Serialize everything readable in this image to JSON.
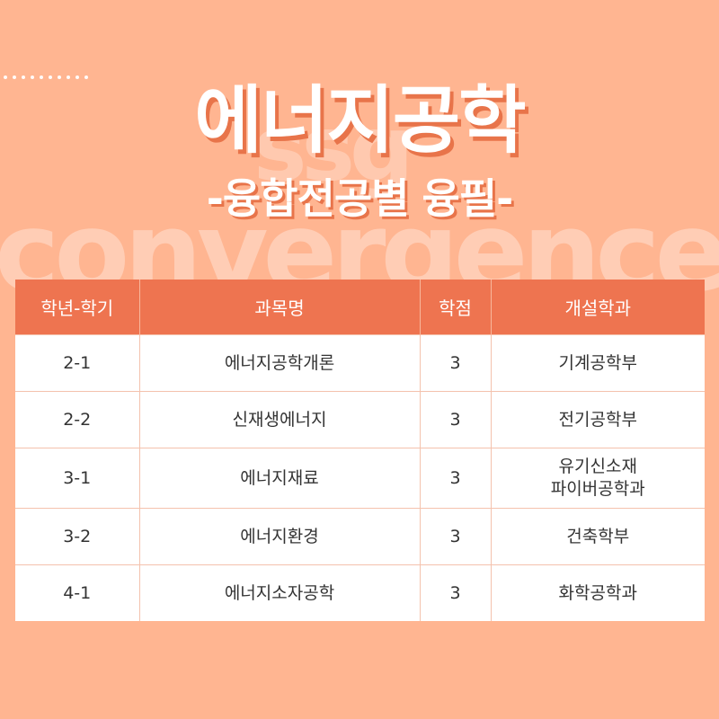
{
  "header": {
    "title": "에너지공학",
    "subtitle": "-융합전공별 융필-",
    "background_word": "convergence",
    "background_word_2": "ssg"
  },
  "table": {
    "columns": [
      "학년-학기",
      "과목명",
      "학점",
      "개설학과"
    ],
    "rows": [
      {
        "term": "2-1",
        "course": "에너지공학개론",
        "credits": "3",
        "department": "기계공학부"
      },
      {
        "term": "2-2",
        "course": "신재생에너지",
        "credits": "3",
        "department": "전기공학부"
      },
      {
        "term": "3-1",
        "course": "에너지재료",
        "credits": "3",
        "department": "유기신소재\n파이버공학과"
      },
      {
        "term": "3-2",
        "course": "에너지환경",
        "credits": "3",
        "department": "건축학부"
      },
      {
        "term": "4-1",
        "course": "에너지소자공학",
        "credits": "3",
        "department": "화학공학과"
      }
    ]
  },
  "colors": {
    "background": "#ffb591",
    "header_fill": "#ee7450",
    "title_shadow": "#e8744a",
    "cell_fill": "#ffffff"
  }
}
